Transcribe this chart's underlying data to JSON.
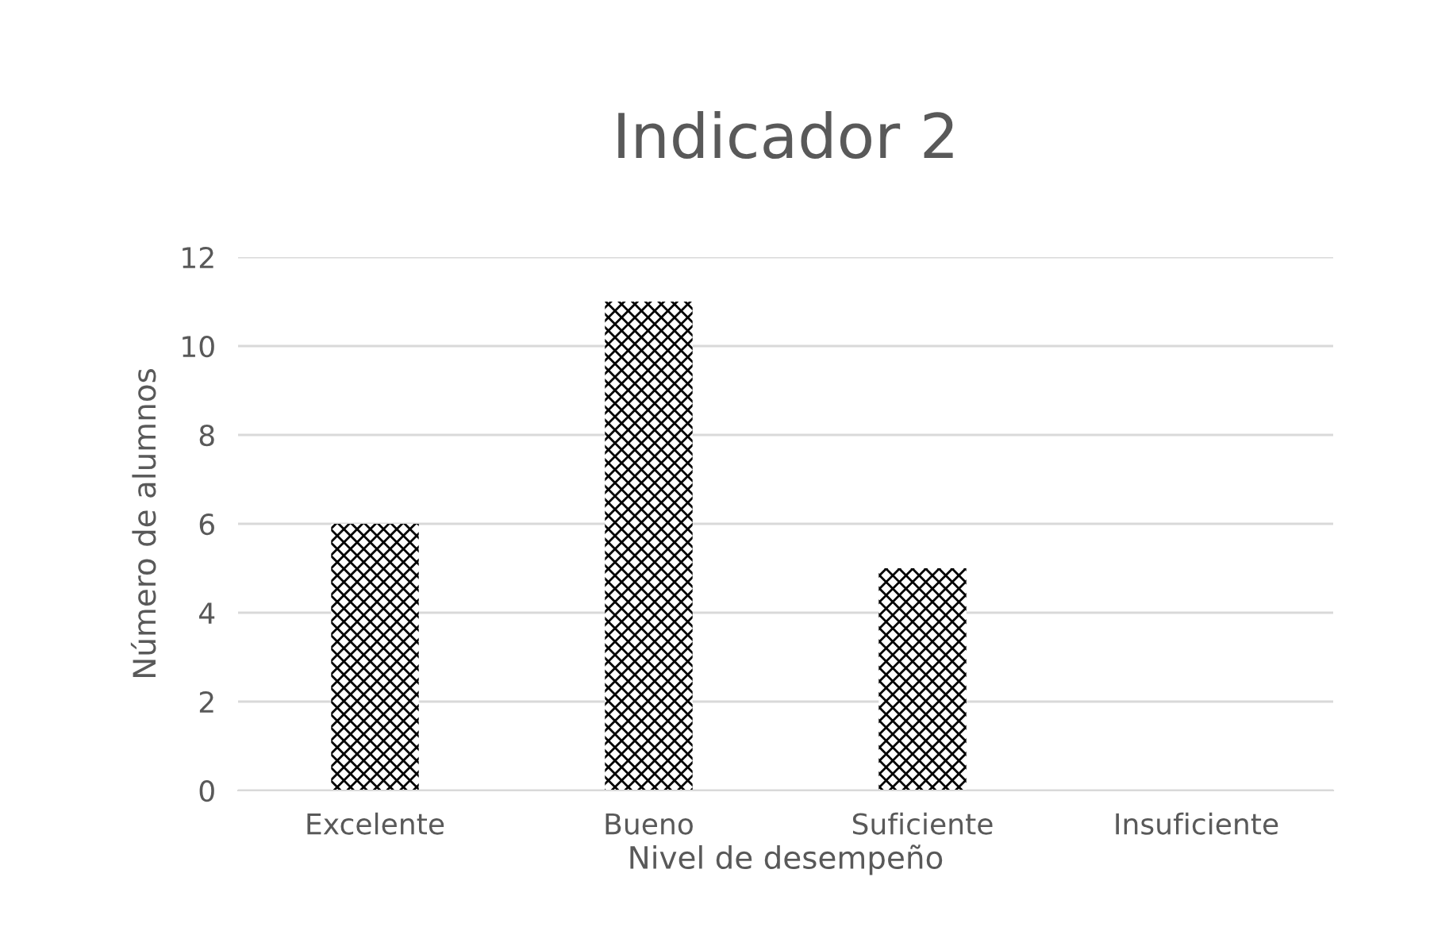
{
  "chart_data": {
    "type": "bar",
    "title": "Indicador 2",
    "xlabel": "Nivel de desempeño",
    "ylabel": "Número de alumnos",
    "categories": [
      "Excelente",
      "Bueno",
      "Suficiente",
      "Insuficiente"
    ],
    "values": [
      6,
      11,
      5,
      0
    ],
    "color": "#000000",
    "ylim": [
      0,
      12
    ],
    "yticks": [
      0,
      2,
      4,
      6,
      8,
      10,
      12
    ],
    "grid": "y",
    "legend": false
  }
}
